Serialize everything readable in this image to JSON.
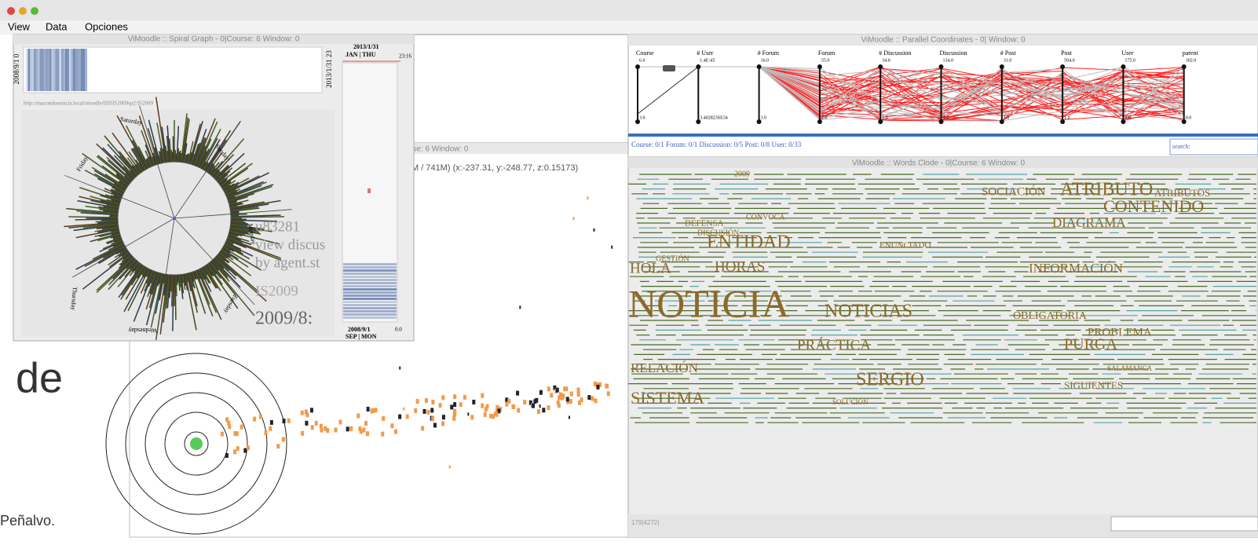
{
  "menu": [
    "View",
    "Data",
    "Opciones"
  ],
  "spiral": {
    "title": "ViMoodle :: Spiral Graph - 0|Course: 6 Window: 0",
    "start_label": "2008/9/1 0",
    "end_label": "2013/1/31 23",
    "cursor_date": "2013/1/31",
    "cursor_day": "JAN | THU",
    "cursor_time": "23:16",
    "url": "http://macondonoticia.local/moodle/IHSIS2009sp2:IS2009",
    "days": [
      "Saturday",
      "Sunday",
      "Friday",
      "Monday",
      "Thursday",
      "Wednesday",
      "Tuesday"
    ],
    "info": [
      "u83281",
      "view discus",
      "by agent.st",
      "IS2009",
      "2009/8:"
    ],
    "bottom_date": "2008/9/1",
    "bottom_day": "SEP | MON",
    "bottom_value": "0.0"
  },
  "graph": {
    "title": "rse: 6 Window: 0",
    "status": "M / 741M) (x:-237.31, y:-248.77, z:0.15173)"
  },
  "parallel": {
    "title": "ViMoodle :: Parallel Coordinates - 0| Window: 0",
    "axes": [
      {
        "name": "Course",
        "max": "6.0",
        "min": "3.0"
      },
      {
        "name": "# User",
        "max": "1.4E-45",
        "min": "3.402823SE34"
      },
      {
        "name": "# Forum",
        "max": "16.0",
        "min": "1.0"
      },
      {
        "name": "Forum",
        "max": "55.0",
        "min": "2.0"
      },
      {
        "name": "# Discussion",
        "max": "34.0",
        "min": "1.0"
      },
      {
        "name": "Discussion",
        "max": "134.0",
        "min": "1.0"
      },
      {
        "name": "# Post",
        "max": "31.0",
        "min": "1.0"
      },
      {
        "name": "Post",
        "max": "504.0",
        "min": "1.0"
      },
      {
        "name": "User",
        "max": "175.0",
        "min": "6.0"
      },
      {
        "name": "parent",
        "max": "302.0",
        "min": "0.0"
      }
    ],
    "status": "Course: 0/1 Forum: 0/1 Discussion: 0/5 Post: 0/8 User: 0/33",
    "search_label": "search:"
  },
  "words": {
    "title": "ViMoodle :: Words Clode - 0|Course: 6 Window: 0",
    "items": [
      "2009",
      "SOCIACIÓN",
      "ATRIBUTO",
      "ATRIBUTOS",
      "CONTENIDO",
      "CONVOCA",
      "DEFENSA",
      "DIAGRAMA",
      "DISCUSIÓN",
      "ENTIDAD",
      "ENUNCIADO",
      "GESTIÓN",
      "HOLA",
      "HORAS",
      "INFORMACIÓN",
      "NOTICIA",
      "NOTICIAS",
      "OBLIGATORIA",
      "PROBLEMA",
      "PRÁCTICA",
      "PURGA",
      "RELACIÓN",
      "SERGIO",
      "SALAMANCA",
      "SIGUIENTES",
      "SISTEMA",
      "SOLUCIÓN"
    ],
    "status": "179|4272|"
  },
  "slide": {
    "heading": "de",
    "author": "Peñalvo."
  }
}
